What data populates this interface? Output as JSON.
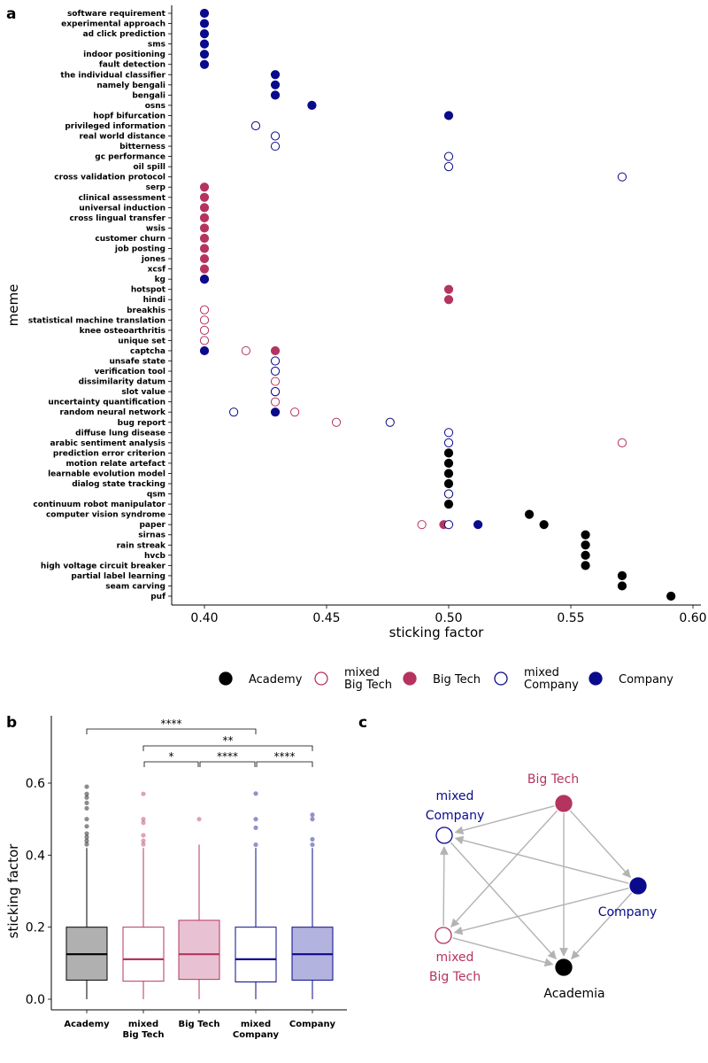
{
  "colors": {
    "academy": "#000000",
    "mixed_big_tech": "#b5345f",
    "big_tech": "#b5345f",
    "mixed_company": "#0a0a8c",
    "company": "#0a0a8c",
    "edge": "#b3b3b3"
  },
  "panels": {
    "a": "a",
    "b": "b",
    "c": "c"
  },
  "legend": [
    {
      "key": "academy",
      "lines": [
        "Academy"
      ],
      "filled": true
    },
    {
      "key": "mixed_big_tech",
      "lines": [
        "mixed",
        "Big Tech"
      ],
      "filled": false
    },
    {
      "key": "big_tech",
      "lines": [
        "Big Tech"
      ],
      "filled": true
    },
    {
      "key": "mixed_company",
      "lines": [
        "mixed",
        "Company"
      ],
      "filled": false
    },
    {
      "key": "company",
      "lines": [
        "Company"
      ],
      "filled": true
    }
  ],
  "chart_data": [
    {
      "type": "scatter",
      "panel": "a",
      "xlabel": "sticking factor",
      "ylabel": "meme",
      "xlim": [
        0.385,
        0.605
      ],
      "xticks": [
        "0.40",
        "0.45",
        "0.50",
        "0.55",
        "0.60"
      ],
      "xtick_values": [
        0.4,
        0.45,
        0.5,
        0.55,
        0.6
      ],
      "grid": false,
      "legend_position": "bottom",
      "memes": [
        {
          "name": "software requirement",
          "points": [
            [
              "company",
              0.4
            ]
          ]
        },
        {
          "name": "experimental approach",
          "points": [
            [
              "company",
              0.4
            ]
          ]
        },
        {
          "name": "ad click prediction",
          "points": [
            [
              "company",
              0.4
            ]
          ]
        },
        {
          "name": "sms",
          "points": [
            [
              "company",
              0.4
            ]
          ]
        },
        {
          "name": "indoor positioning",
          "points": [
            [
              "company",
              0.4
            ]
          ]
        },
        {
          "name": "fault detection",
          "points": [
            [
              "company",
              0.4
            ]
          ]
        },
        {
          "name": "the individual classifier",
          "points": [
            [
              "company",
              0.429
            ]
          ]
        },
        {
          "name": "namely bengali",
          "points": [
            [
              "company",
              0.429
            ]
          ]
        },
        {
          "name": "bengali",
          "points": [
            [
              "company",
              0.429
            ]
          ]
        },
        {
          "name": "osns",
          "points": [
            [
              "company",
              0.444
            ]
          ]
        },
        {
          "name": "hopf bifurcation",
          "points": [
            [
              "company",
              0.5
            ]
          ]
        },
        {
          "name": "privileged information",
          "points": [
            [
              "mixed_company",
              0.421
            ]
          ]
        },
        {
          "name": "real world distance",
          "points": [
            [
              "mixed_company",
              0.429
            ]
          ]
        },
        {
          "name": "bitterness",
          "points": [
            [
              "mixed_company",
              0.429
            ]
          ]
        },
        {
          "name": "gc performance",
          "points": [
            [
              "mixed_company",
              0.5
            ]
          ]
        },
        {
          "name": "oil spill",
          "points": [
            [
              "mixed_company",
              0.5
            ]
          ]
        },
        {
          "name": "cross validation protocol",
          "points": [
            [
              "mixed_company",
              0.571
            ]
          ]
        },
        {
          "name": "serp",
          "points": [
            [
              "big_tech",
              0.4
            ]
          ]
        },
        {
          "name": "clinical assessment",
          "points": [
            [
              "big_tech",
              0.4
            ]
          ]
        },
        {
          "name": "universal induction",
          "points": [
            [
              "big_tech",
              0.4
            ]
          ]
        },
        {
          "name": "cross lingual transfer",
          "points": [
            [
              "big_tech",
              0.4
            ]
          ]
        },
        {
          "name": "wsis",
          "points": [
            [
              "big_tech",
              0.4
            ]
          ]
        },
        {
          "name": "customer churn",
          "points": [
            [
              "big_tech",
              0.4
            ]
          ]
        },
        {
          "name": "job posting",
          "points": [
            [
              "big_tech",
              0.4
            ]
          ]
        },
        {
          "name": "jones",
          "points": [
            [
              "big_tech",
              0.4
            ]
          ]
        },
        {
          "name": "xcsf",
          "points": [
            [
              "big_tech",
              0.4
            ]
          ]
        },
        {
          "name": "kg",
          "points": [
            [
              "big_tech",
              0.4
            ],
            [
              "company",
              0.4
            ]
          ]
        },
        {
          "name": "hotspot",
          "points": [
            [
              "big_tech",
              0.5
            ]
          ]
        },
        {
          "name": "hindi",
          "points": [
            [
              "big_tech",
              0.5
            ]
          ]
        },
        {
          "name": "breakhis",
          "points": [
            [
              "mixed_big_tech",
              0.4
            ]
          ]
        },
        {
          "name": "statistical machine translation",
          "points": [
            [
              "mixed_big_tech",
              0.4
            ]
          ]
        },
        {
          "name": "knee osteoarthritis",
          "points": [
            [
              "mixed_big_tech",
              0.4
            ]
          ]
        },
        {
          "name": "unique set",
          "points": [
            [
              "mixed_big_tech",
              0.4
            ]
          ]
        },
        {
          "name": "captcha",
          "points": [
            [
              "company",
              0.4
            ],
            [
              "mixed_big_tech",
              0.417
            ],
            [
              "big_tech",
              0.429
            ]
          ]
        },
        {
          "name": "unsafe state",
          "points": [
            [
              "mixed_company",
              0.429
            ]
          ]
        },
        {
          "name": "verification tool",
          "points": [
            [
              "mixed_company",
              0.429
            ]
          ]
        },
        {
          "name": "dissimilarity datum",
          "points": [
            [
              "mixed_big_tech",
              0.429
            ]
          ]
        },
        {
          "name": "slot value",
          "points": [
            [
              "mixed_big_tech",
              0.429
            ],
            [
              "mixed_company",
              0.429
            ]
          ]
        },
        {
          "name": "uncertainty quantification",
          "points": [
            [
              "mixed_big_tech",
              0.429
            ]
          ]
        },
        {
          "name": "random neural network",
          "points": [
            [
              "mixed_company",
              0.412
            ],
            [
              "company",
              0.429
            ],
            [
              "mixed_big_tech",
              0.437
            ]
          ]
        },
        {
          "name": "bug report",
          "points": [
            [
              "mixed_big_tech",
              0.454
            ],
            [
              "mixed_company",
              0.476
            ]
          ]
        },
        {
          "name": "diffuse lung disease",
          "points": [
            [
              "mixed_company",
              0.5
            ]
          ]
        },
        {
          "name": "arabic sentiment analysis",
          "points": [
            [
              "mixed_company",
              0.5
            ],
            [
              "mixed_big_tech",
              0.571
            ]
          ]
        },
        {
          "name": "prediction error criterion",
          "points": [
            [
              "academy",
              0.5
            ]
          ]
        },
        {
          "name": "motion relate artefact",
          "points": [
            [
              "academy",
              0.5
            ]
          ]
        },
        {
          "name": "learnable evolution model",
          "points": [
            [
              "academy",
              0.5
            ]
          ]
        },
        {
          "name": "dialog state tracking",
          "points": [
            [
              "academy",
              0.5
            ]
          ]
        },
        {
          "name": "qsm",
          "points": [
            [
              "academy",
              0.5
            ],
            [
              "mixed_company",
              0.5
            ]
          ]
        },
        {
          "name": "continuum robot manipulator",
          "points": [
            [
              "academy",
              0.5
            ]
          ]
        },
        {
          "name": "computer vision syndrome",
          "points": [
            [
              "academy",
              0.533
            ]
          ]
        },
        {
          "name": "paper",
          "points": [
            [
              "mixed_big_tech",
              0.489
            ],
            [
              "big_tech",
              0.498
            ],
            [
              "mixed_company",
              0.5
            ],
            [
              "company",
              0.512
            ],
            [
              "academy",
              0.539
            ]
          ]
        },
        {
          "name": "sirnas",
          "points": [
            [
              "academy",
              0.556
            ]
          ]
        },
        {
          "name": "rain streak",
          "points": [
            [
              "academy",
              0.556
            ]
          ]
        },
        {
          "name": "hvcb",
          "points": [
            [
              "academy",
              0.556
            ]
          ]
        },
        {
          "name": "high voltage circuit breaker",
          "points": [
            [
              "academy",
              0.556
            ]
          ]
        },
        {
          "name": "partial label learning",
          "points": [
            [
              "academy",
              0.571
            ]
          ]
        },
        {
          "name": "seam carving",
          "points": [
            [
              "academy",
              0.571
            ]
          ]
        },
        {
          "name": "puf",
          "points": [
            [
              "academy",
              0.591
            ]
          ]
        }
      ]
    },
    {
      "type": "box",
      "panel": "b",
      "ylabel": "sticking factor",
      "ylim": [
        -0.03,
        0.77
      ],
      "yticks": [
        "0.0",
        "0.2",
        "0.4",
        "0.6"
      ],
      "ytick_values": [
        0.0,
        0.2,
        0.4,
        0.6
      ],
      "groups": [
        {
          "key": "academy",
          "lines": [
            "Academy"
          ],
          "q1": 0.053,
          "median": 0.125,
          "q3": 0.2,
          "whisker_low": 0.0,
          "whisker_high": 0.42,
          "fill": "#b0b0b0",
          "line": "#000000",
          "outliers": [
            0.43,
            0.44,
            0.45,
            0.46,
            0.48,
            0.5,
            0.53,
            0.545,
            0.56,
            0.57,
            0.59
          ]
        },
        {
          "key": "mixed_big_tech",
          "lines": [
            "mixed",
            "Big Tech"
          ],
          "q1": 0.05,
          "median": 0.111,
          "q3": 0.2,
          "whisker_low": 0.0,
          "whisker_high": 0.42,
          "fill": "#ffffff",
          "line": "#b5345f",
          "outliers": [
            0.43,
            0.44,
            0.455,
            0.49,
            0.5,
            0.57
          ]
        },
        {
          "key": "big_tech",
          "lines": [
            "Big Tech"
          ],
          "q1": 0.055,
          "median": 0.125,
          "q3": 0.219,
          "whisker_low": 0.0,
          "whisker_high": 0.429,
          "fill": "#e8c2d2",
          "line": "#b5345f",
          "outliers": [
            0.5
          ]
        },
        {
          "key": "mixed_company",
          "lines": [
            "mixed",
            "Company"
          ],
          "q1": 0.048,
          "median": 0.111,
          "q3": 0.2,
          "whisker_low": 0.0,
          "whisker_high": 0.42,
          "fill": "#ffffff",
          "line": "#0a0a8c",
          "outliers": [
            0.429,
            0.476,
            0.5,
            0.571
          ]
        },
        {
          "key": "company",
          "lines": [
            "Company"
          ],
          "q1": 0.053,
          "median": 0.125,
          "q3": 0.2,
          "whisker_low": 0.0,
          "whisker_high": 0.42,
          "fill": "#b3b3df",
          "line": "#0a0a8c",
          "outliers": [
            0.429,
            0.444,
            0.5,
            0.512
          ]
        }
      ],
      "comparisons": [
        {
          "from": 0,
          "to": 3,
          "label": "****",
          "level": 3
        },
        {
          "from": 1,
          "to": 4,
          "label": "**",
          "level": 2
        },
        {
          "from": 1,
          "to": 2,
          "label": "*",
          "level": 1
        },
        {
          "from": 2,
          "to": 3,
          "label": "****",
          "level": 1
        },
        {
          "from": 3,
          "to": 4,
          "label": "****",
          "level": 1
        }
      ]
    },
    {
      "type": "network",
      "panel": "c",
      "nodes": [
        {
          "key": "big_tech",
          "lines": [
            "Big Tech"
          ],
          "filled": true
        },
        {
          "key": "mixed_company",
          "lines": [
            "mixed",
            "Company"
          ],
          "filled": false
        },
        {
          "key": "company",
          "lines": [
            "Company"
          ],
          "filled": true
        },
        {
          "key": "mixed_big_tech",
          "lines": [
            "mixed",
            "Big Tech"
          ],
          "filled": false
        },
        {
          "key": "academy",
          "lines": [
            "Academia"
          ],
          "filled": true
        }
      ],
      "edges": [
        [
          "big_tech",
          "mixed_company"
        ],
        [
          "big_tech",
          "company"
        ],
        [
          "big_tech",
          "academy"
        ],
        [
          "big_tech",
          "mixed_big_tech"
        ],
        [
          "company",
          "mixed_company"
        ],
        [
          "company",
          "mixed_big_tech"
        ],
        [
          "company",
          "academy"
        ],
        [
          "mixed_company",
          "academy"
        ],
        [
          "mixed_big_tech",
          "mixed_company"
        ],
        [
          "mixed_big_tech",
          "academy"
        ]
      ]
    }
  ]
}
